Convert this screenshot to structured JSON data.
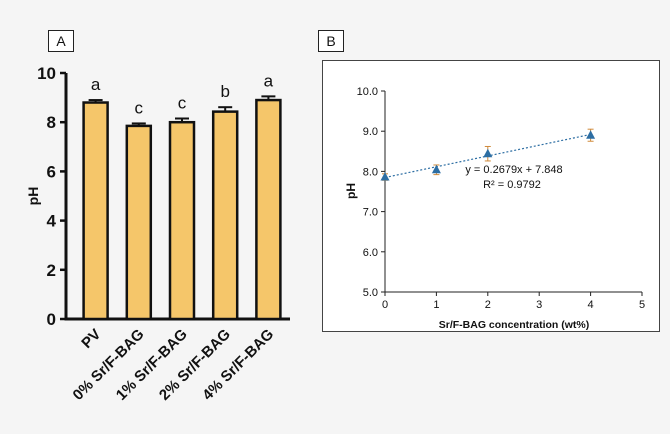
{
  "panels": {
    "a_label": "A",
    "b_label": "B"
  },
  "chart_data": [
    {
      "type": "bar",
      "panel": "A",
      "categories": [
        "PV",
        "0% Sr/F-BAG",
        "1% Sr/F-BAG",
        "2% Sr/F-BAG",
        "4% Sr/F-BAG"
      ],
      "values": [
        8.8,
        7.85,
        8.0,
        8.43,
        8.9
      ],
      "errors": [
        0.1,
        0.1,
        0.15,
        0.18,
        0.15
      ],
      "significance_letters": [
        "a",
        "c",
        "c",
        "b",
        "a"
      ],
      "xlabel": "",
      "ylabel": "pH",
      "ylim": [
        0,
        10
      ],
      "yticks": [
        "0",
        "2",
        "4",
        "6",
        "8",
        "10"
      ],
      "bar_color": "#f5c66a",
      "grid": false
    },
    {
      "type": "scatter",
      "panel": "B",
      "x": [
        0,
        1,
        2,
        4
      ],
      "y": [
        7.86,
        8.04,
        8.44,
        8.9
      ],
      "errors": [
        0.08,
        0.12,
        0.18,
        0.15
      ],
      "trendline": {
        "slope": 0.2679,
        "intercept": 7.848
      },
      "equation_text": "y = 0.2679x + 7.848",
      "r2_text": "R² = 0.9792",
      "xlabel": "Sr/F-BAG concentration (wt%)",
      "ylabel": "pH",
      "xlim": [
        0,
        5
      ],
      "ylim": [
        5.0,
        10.0
      ],
      "xticks": [
        "0",
        "1",
        "2",
        "3",
        "4",
        "5"
      ],
      "yticks": [
        "5.0",
        "6.0",
        "7.0",
        "8.0",
        "9.0",
        "10.0"
      ],
      "marker_color": "#2d6ea3",
      "grid": false
    }
  ]
}
